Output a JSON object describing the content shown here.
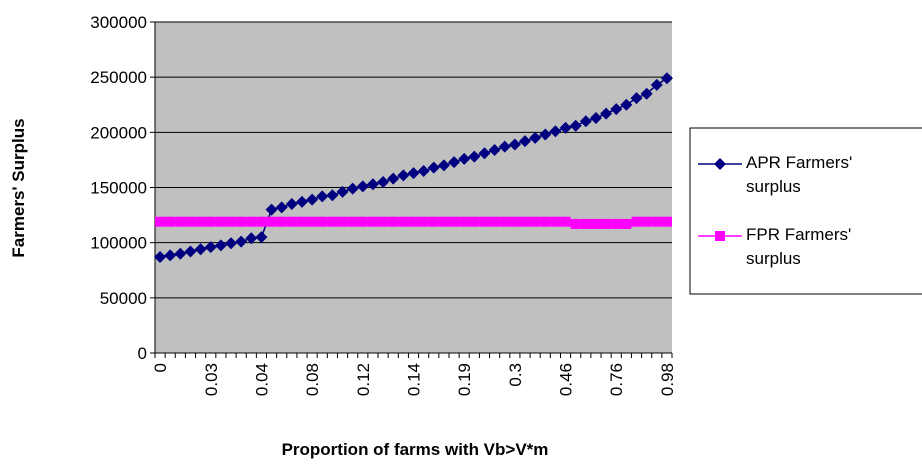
{
  "chart_data": {
    "type": "line",
    "xlabel": "Proportion of farms with Vb>V*m",
    "ylabel": "Farmers' Surplus",
    "categories": [
      "0",
      null,
      null,
      null,
      null,
      "0.03",
      null,
      null,
      null,
      null,
      "0.04",
      null,
      null,
      null,
      null,
      "0.08",
      null,
      null,
      null,
      null,
      "0.12",
      null,
      null,
      null,
      null,
      "0.14",
      null,
      null,
      null,
      null,
      "0.19",
      null,
      null,
      null,
      null,
      "0.3",
      null,
      null,
      null,
      null,
      "0.46",
      null,
      null,
      null,
      null,
      "0.76",
      null,
      null,
      null,
      null,
      "0.98"
    ],
    "series": [
      {
        "name": "APR Farmers' surplus",
        "color": "#000080",
        "marker": "diamond",
        "values": [
          87000,
          88500,
          90000,
          92000,
          94000,
          96000,
          97500,
          99500,
          101000,
          104000,
          105000,
          130000,
          132000,
          135000,
          137000,
          139000,
          142000,
          143000,
          146000,
          149000,
          151000,
          153000,
          155000,
          158000,
          161000,
          163000,
          165000,
          168000,
          170000,
          173000,
          176000,
          178000,
          181000,
          184000,
          187000,
          189000,
          192000,
          195000,
          198000,
          201000,
          204000,
          206000,
          210000,
          213000,
          217000,
          221000,
          225000,
          231000,
          235000,
          243000,
          249000
        ]
      },
      {
        "name": "FPR Farmers' surplus",
        "color": "#ff00ff",
        "marker": "square",
        "values": [
          119000,
          119000,
          119000,
          119000,
          119000,
          119000,
          119000,
          119000,
          119000,
          119000,
          119000,
          119000,
          119000,
          119000,
          119000,
          119000,
          119000,
          119000,
          119000,
          119000,
          119000,
          119000,
          119000,
          119000,
          119000,
          119000,
          119000,
          119000,
          119000,
          119000,
          119000,
          119000,
          119000,
          119000,
          119000,
          119000,
          119000,
          119000,
          119000,
          119000,
          119000,
          117000,
          117000,
          117000,
          117000,
          117000,
          117000,
          119000,
          119000,
          119000,
          119000
        ]
      }
    ],
    "ylim": [
      0,
      300000
    ],
    "yticks": [
      0,
      50000,
      100000,
      150000,
      200000,
      250000,
      300000
    ],
    "grid": true,
    "legend": "right"
  }
}
